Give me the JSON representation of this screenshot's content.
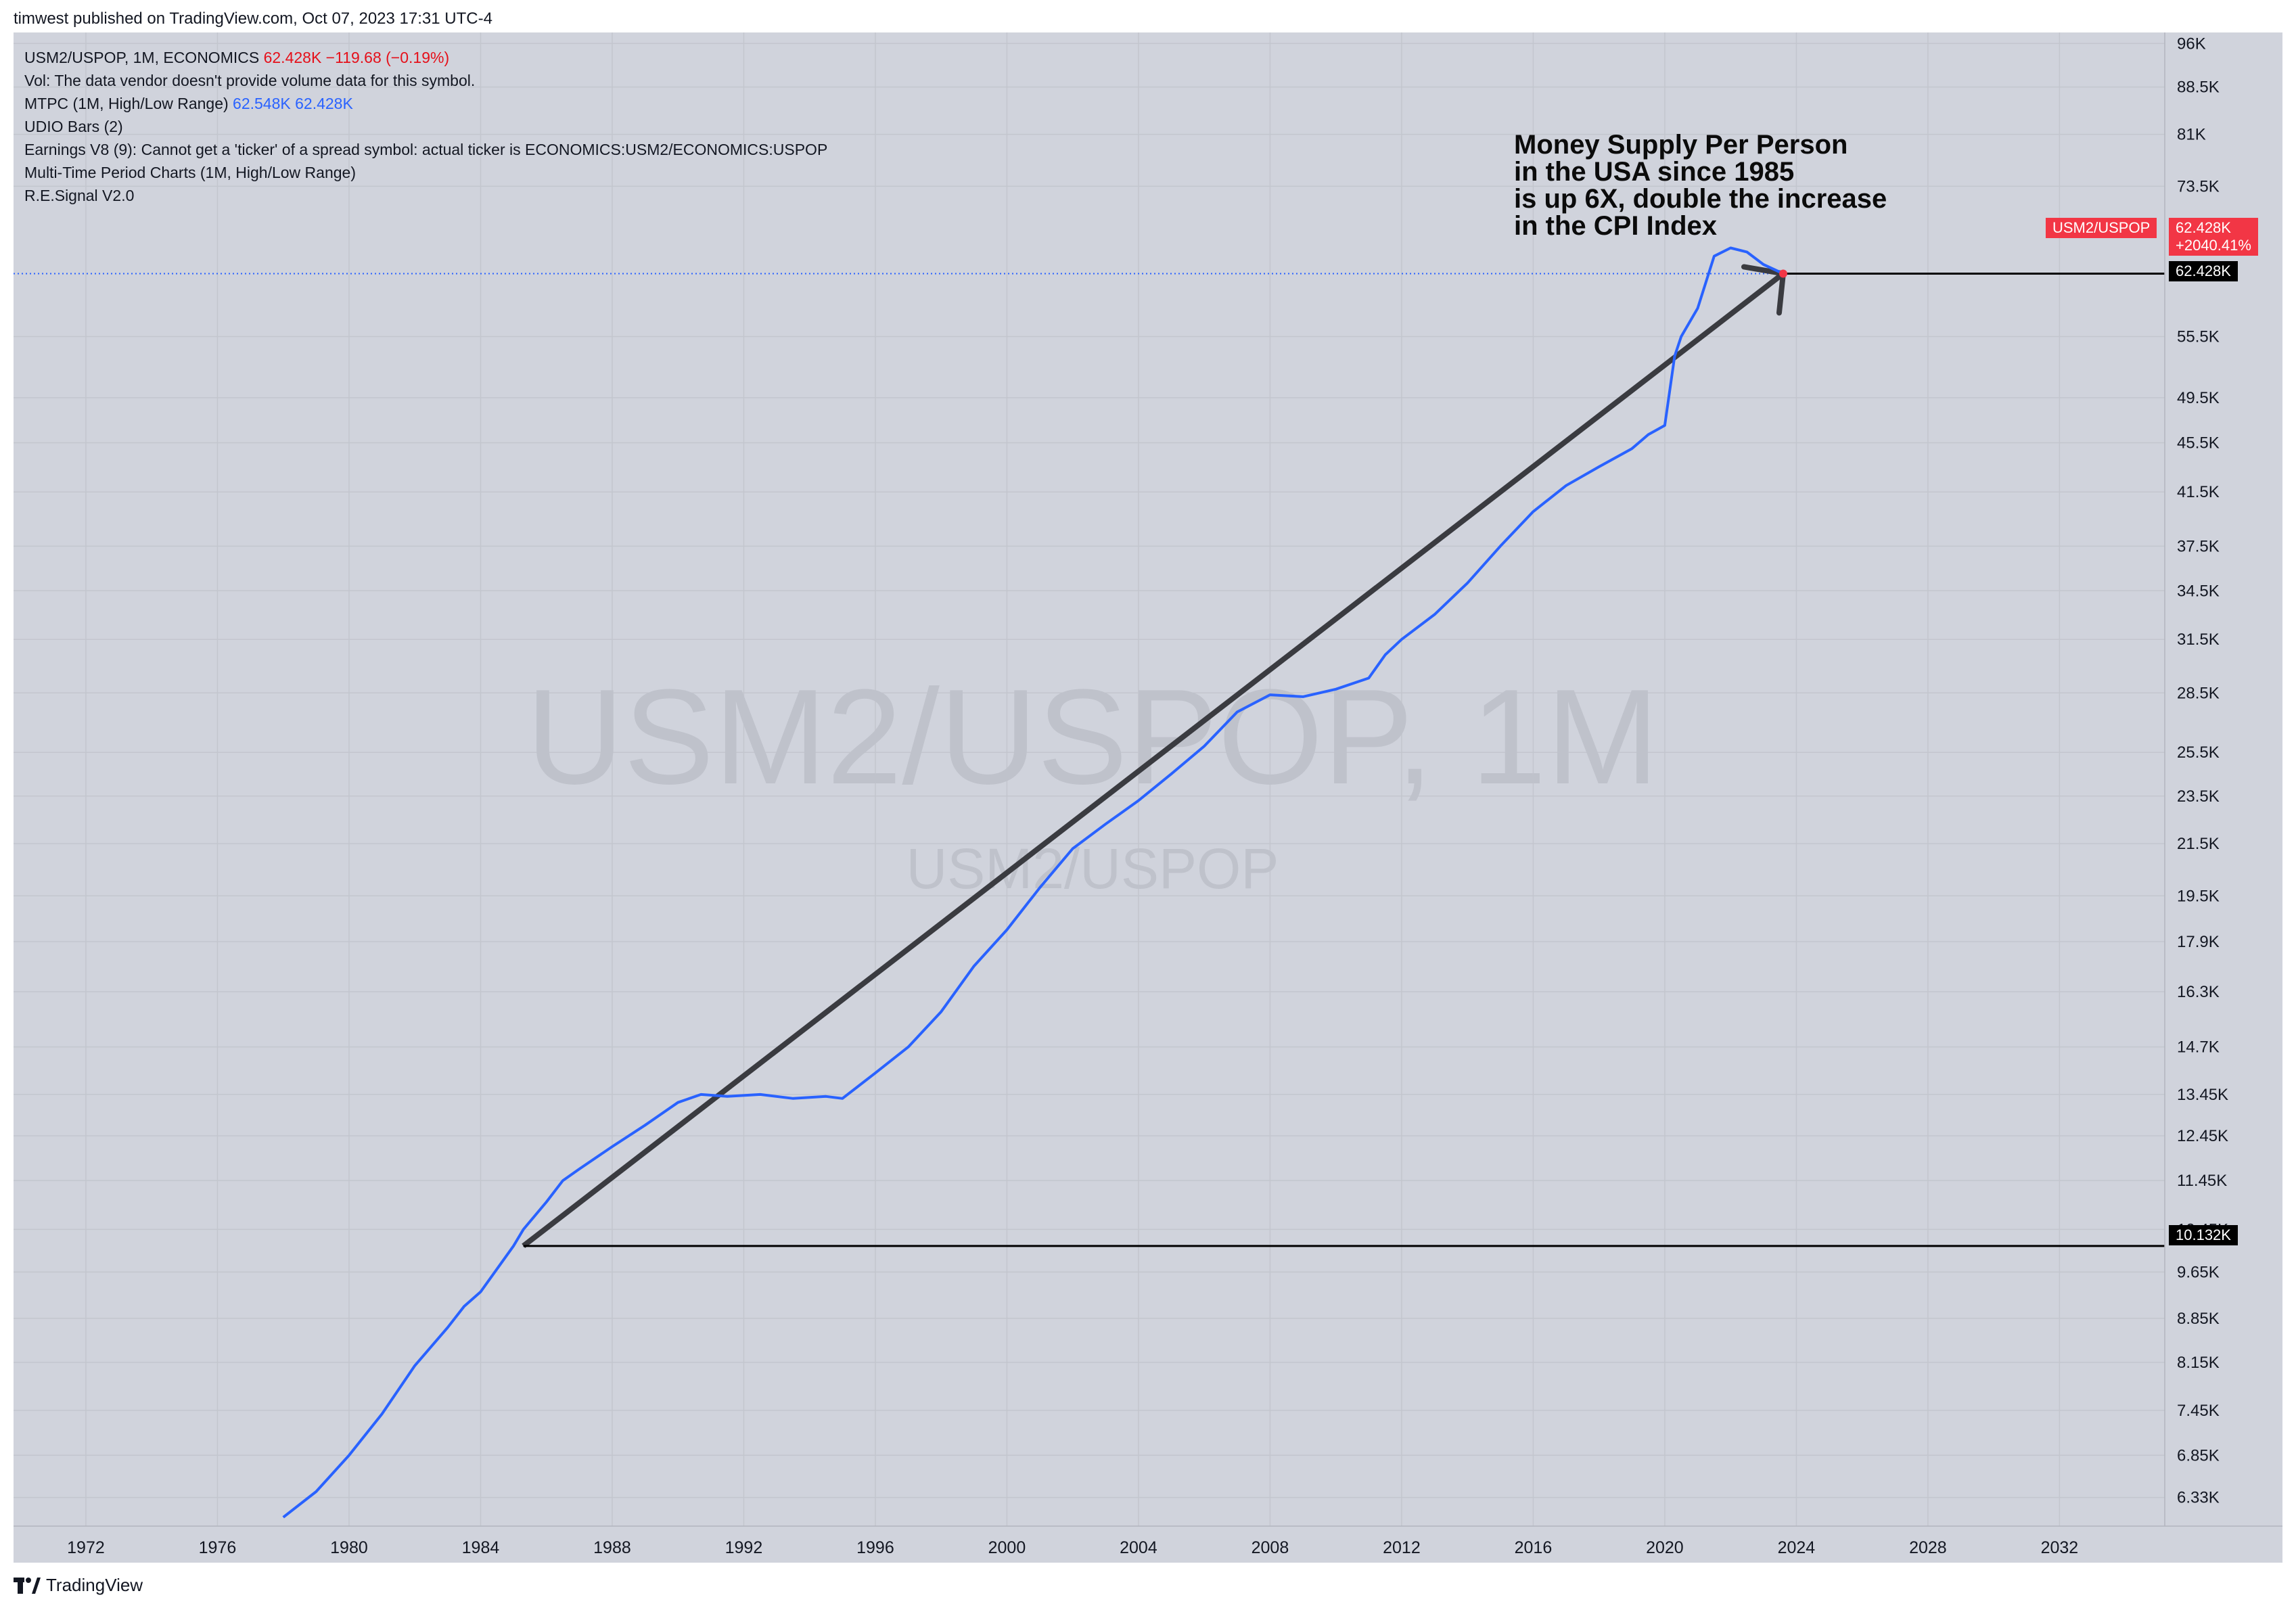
{
  "header": {
    "published": "timwest published on TradingView.com, Oct 07, 2023 17:31 UTC-4"
  },
  "legend": {
    "symbol_line": "USM2/USPOP, 1M, ECONOMICS",
    "symbol_values": "62.428K  −119.68 (−0.19%)",
    "vol": "Vol: The data vendor doesn't provide volume data for this symbol.",
    "mtpc_label": "MTPC (1M, High/Low Range)",
    "mtpc_values": "62.548K  62.428K",
    "udio": "UDIO Bars (2)",
    "earnings": "Earnings V8 (9): Cannot get a 'ticker' of a spread symbol: actual ticker is ECONOMICS:USM2/ECONOMICS:USPOP",
    "multi": "Multi-Time Period Charts (1M, High/Low Range)",
    "resignal": "R.E.Signal V2.0"
  },
  "watermark": {
    "big": "USM2/USPOP, 1M",
    "small": "USM2/USPOP"
  },
  "annotation": {
    "lines": [
      "Money Supply Per Person",
      "in the USA since 1985",
      "is up 6X, double the increase",
      "in the CPI Index"
    ]
  },
  "price_tags": {
    "symbol_name": "USM2/USPOP",
    "last_value": "62.428K",
    "change_pct": "+2040.41%",
    "hline_top": "62.428K",
    "hline_bottom": "10.132K"
  },
  "footer": {
    "brand": "TradingView"
  },
  "colors": {
    "series": "#2962ff",
    "background": "#d0d3dc",
    "trend_line": "#3a3b40",
    "tag_red": "#f23645",
    "tag_black": "#000000"
  },
  "chart_data": {
    "type": "line",
    "title": "USM2/USPOP, 1M, ECONOMICS",
    "y_scale": "log",
    "ylim": [
      6000,
      98000
    ],
    "xlim": [
      1969.8,
      2035.2
    ],
    "grid": true,
    "y_ticks": [
      "96K",
      "88.5K",
      "81K",
      "73.5K",
      "62.428K",
      "55.5K",
      "49.5K",
      "45.5K",
      "41.5K",
      "37.5K",
      "34.5K",
      "31.5K",
      "28.5K",
      "25.5K",
      "23.5K",
      "21.5K",
      "19.5K",
      "17.9K",
      "16.3K",
      "14.7K",
      "13.45K",
      "12.45K",
      "11.45K",
      "10.45K",
      "10.132K",
      "9.65K",
      "8.85K",
      "8.15K",
      "7.45K",
      "6.85K",
      "6.33K"
    ],
    "x_ticks": [
      "1972",
      "1976",
      "1980",
      "1984",
      "1988",
      "1992",
      "1996",
      "2000",
      "2004",
      "2008",
      "2012",
      "2016",
      "2020",
      "2024",
      "2028",
      "2032"
    ],
    "series": [
      {
        "name": "USM2/USPOP",
        "x": [
          1978.0,
          1979.0,
          1980.0,
          1981.0,
          1982.0,
          1983.0,
          1983.5,
          1984.0,
          1985.0,
          1985.3,
          1986.0,
          1986.5,
          1987.0,
          1988.0,
          1989.0,
          1990.0,
          1990.7,
          1991.5,
          1992.5,
          1993.5,
          1994.5,
          1995.0,
          1996.0,
          1997.0,
          1998.0,
          1999.0,
          2000.0,
          2001.0,
          2002.0,
          2003.0,
          2004.0,
          2005.0,
          2006.0,
          2007.0,
          2008.0,
          2009.0,
          2010.0,
          2011.0,
          2011.5,
          2012.0,
          2013.0,
          2014.0,
          2015.0,
          2016.0,
          2017.0,
          2018.0,
          2019.0,
          2019.5,
          2020.0,
          2020.3,
          2020.5,
          2021.0,
          2021.5,
          2022.0,
          2022.5,
          2023.0,
          2023.6
        ],
        "y": [
          6100,
          6400,
          6850,
          7400,
          8100,
          8700,
          9050,
          9300,
          10132,
          10450,
          11000,
          11450,
          11700,
          12200,
          12700,
          13250,
          13450,
          13400,
          13450,
          13350,
          13400,
          13350,
          14000,
          14700,
          15700,
          17100,
          18300,
          19800,
          21300,
          22300,
          23300,
          24500,
          25800,
          27500,
          28400,
          28300,
          28700,
          29300,
          30600,
          31500,
          33000,
          35000,
          37500,
          40000,
          42000,
          43500,
          45000,
          46200,
          47000,
          53500,
          55500,
          58500,
          64500,
          65500,
          65000,
          63500,
          62428
        ]
      }
    ],
    "trend_lines": [
      {
        "from": [
          1985.3,
          10132
        ],
        "to": [
          2023.6,
          62428
        ]
      },
      {
        "from": [
          1985.3,
          10132
        ],
        "to": [
          2035.2,
          10132
        ]
      },
      {
        "from": [
          2023.6,
          62428
        ],
        "to": [
          2035.2,
          62428
        ]
      }
    ]
  }
}
